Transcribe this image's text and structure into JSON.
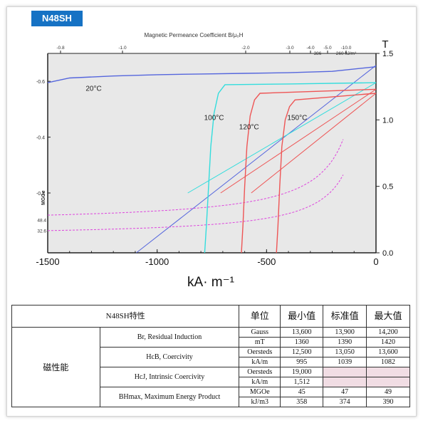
{
  "badge": "N48SH",
  "chart_data": {
    "type": "line",
    "title": "Magnetic Permeance Coefficient B/μ₀H",
    "xlabel": "kA· m⁻¹",
    "y2label": "T",
    "xlim": [
      -1500,
      0
    ],
    "ylim": [
      0,
      1.5
    ],
    "xticks": [
      -1500,
      -1000,
      -500,
      0
    ],
    "yticks_right": [
      0.0,
      0.5,
      1.0,
      1.5
    ],
    "yticks_left": [
      {
        "label": "-0.6",
        "y": 1.29
      },
      {
        "label": "-0.4",
        "y": 0.87
      },
      {
        "label": "-0.2",
        "y": 0.45
      }
    ],
    "left_axis_label": "MGOe",
    "left_axis_markers": [
      {
        "label": "48.4",
        "y": 0.25
      },
      {
        "label": "32.6",
        "y": 0.17
      }
    ],
    "top_ticks": [
      "-0.8",
      "-1.0",
      "-2.0",
      "-3.0",
      "-4.0",
      "-5.0",
      "-10.0"
    ],
    "top_extra": [
      "386",
      "260 kJ/m³"
    ],
    "annotations": [
      "20°C",
      "100°C",
      "120°C",
      "150°C"
    ],
    "series": [
      {
        "name": "20°C",
        "color": "#5566dd",
        "x": [
          -1500,
          -1400,
          -1200,
          -1000,
          -800,
          -600,
          -400,
          -200,
          0
        ],
        "y": [
          1.28,
          1.315,
          1.33,
          1.34,
          1.345,
          1.35,
          1.355,
          1.365,
          1.4
        ]
      },
      {
        "name": "100°C",
        "color": "#33dddd",
        "x": [
          -783,
          -775,
          -765,
          -755,
          -740,
          -720,
          -690,
          -400,
          0
        ],
        "y": [
          0,
          0.2,
          0.5,
          0.8,
          1.05,
          1.2,
          1.265,
          1.27,
          1.28
        ]
      },
      {
        "name": "120°C",
        "color": "#ee5555",
        "x": [
          -615,
          -608,
          -600,
          -590,
          -575,
          -555,
          -530,
          0
        ],
        "y": [
          0,
          0.2,
          0.5,
          0.8,
          1.03,
          1.15,
          1.2,
          1.23
        ]
      },
      {
        "name": "150°C",
        "color": "#ee5555",
        "x": [
          -455,
          -448,
          -440,
          -430,
          -415,
          -395,
          -370,
          0
        ],
        "y": [
          0,
          0.2,
          0.5,
          0.8,
          1.0,
          1.1,
          1.15,
          1.2
        ]
      }
    ]
  },
  "table": {
    "title": "N48SH特性",
    "head_unit": "单位",
    "head_min": "最小值",
    "head_std": "标准值",
    "head_max": "最大值",
    "group": "磁性能",
    "br": {
      "label": "Br, Residual Induction",
      "unit1": "Gauss",
      "min1": "13,600",
      "std1": "13,900",
      "max1": "14,200",
      "unit2": "mT",
      "min2": "1360",
      "std2": "1390",
      "max2": "1420"
    },
    "hcb": {
      "label": "HcB, Coercivity",
      "unit1": "Oersteds",
      "min1": "12,500",
      "std1": "13,050",
      "max1": "13,600",
      "unit2": "kA/m",
      "min2": "995",
      "std2": "1039",
      "max2": "1082"
    },
    "hcj": {
      "label": "HcJ, Intrinsic Coercivity",
      "unit1": "Oersteds",
      "min1": "19,000",
      "unit2": "kA/m",
      "min2": "1,512"
    },
    "bh": {
      "label": "BHmax, Maximum Energy Product",
      "unit1": "MGOe",
      "min1": "45",
      "std1": "47",
      "max1": "49",
      "unit2": "kJ/m3",
      "min2": "358",
      "std2": "374",
      "max2": "390"
    }
  }
}
